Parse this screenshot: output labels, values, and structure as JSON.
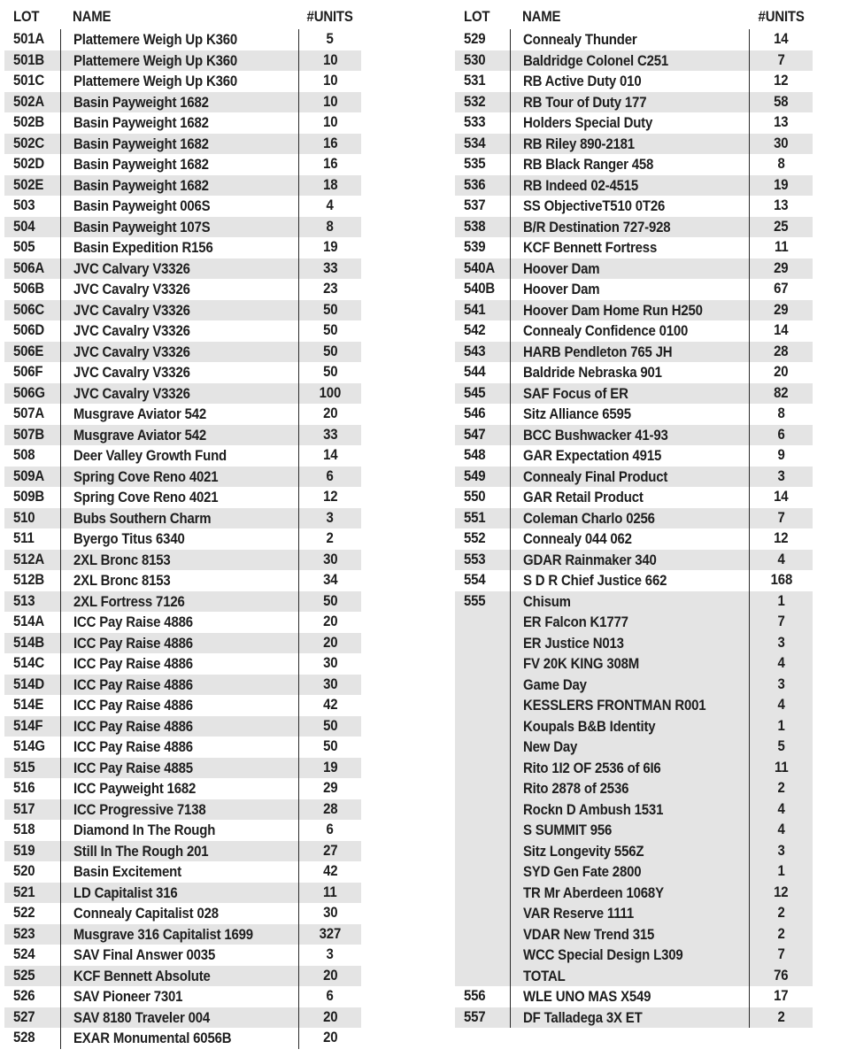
{
  "style": {
    "text_color": "#1d1d1d",
    "stripe_color": "#e4e4e4",
    "rule_color": "#2a2a2a",
    "background_color": "#ffffff"
  },
  "tables": [
    {
      "headers": {
        "lot": "LOT",
        "name": "NAME",
        "units": "#UNITS"
      },
      "rows": [
        {
          "lot": "501A",
          "name": "Plattemere Weigh Up K360",
          "units": "5"
        },
        {
          "lot": "501B",
          "name": "Plattemere Weigh Up K360",
          "units": "10"
        },
        {
          "lot": "501C",
          "name": "Plattemere Weigh Up K360",
          "units": "10"
        },
        {
          "lot": "502A",
          "name": "Basin Payweight 1682",
          "units": "10"
        },
        {
          "lot": "502B",
          "name": "Basin Payweight 1682",
          "units": "10"
        },
        {
          "lot": "502C",
          "name": "Basin Payweight 1682",
          "units": "16"
        },
        {
          "lot": "502D",
          "name": "Basin Payweight 1682",
          "units": "16"
        },
        {
          "lot": "502E",
          "name": "Basin Payweight 1682",
          "units": "18"
        },
        {
          "lot": "503",
          "name": "Basin Payweight 006S",
          "units": "4"
        },
        {
          "lot": "504",
          "name": "Basin Payweight 107S",
          "units": "8"
        },
        {
          "lot": "505",
          "name": "Basin Expedition R156",
          "units": "19"
        },
        {
          "lot": "506A",
          "name": "JVC Calvary V3326",
          "units": "33"
        },
        {
          "lot": "506B",
          "name": "JVC Cavalry V3326",
          "units": "23"
        },
        {
          "lot": "506C",
          "name": "JVC Cavalry V3326",
          "units": "50"
        },
        {
          "lot": "506D",
          "name": "JVC Cavalry V3326",
          "units": "50"
        },
        {
          "lot": "506E",
          "name": "JVC Cavalry V3326",
          "units": "50"
        },
        {
          "lot": "506F",
          "name": "JVC Cavalry V3326",
          "units": "50"
        },
        {
          "lot": "506G",
          "name": "JVC Cavalry V3326",
          "units": "100"
        },
        {
          "lot": "507A",
          "name": "Musgrave Aviator 542",
          "units": "20"
        },
        {
          "lot": "507B",
          "name": "Musgrave Aviator 542",
          "units": "33"
        },
        {
          "lot": "508",
          "name": "Deer Valley Growth Fund",
          "units": "14"
        },
        {
          "lot": "509A",
          "name": "Spring Cove Reno 4021",
          "units": "6"
        },
        {
          "lot": "509B",
          "name": "Spring Cove Reno 4021",
          "units": "12"
        },
        {
          "lot": "510",
          "name": "Bubs Southern Charm",
          "units": "3"
        },
        {
          "lot": "511",
          "name": "Byergo Titus 6340",
          "units": "2"
        },
        {
          "lot": "512A",
          "name": "2XL Bronc 8153",
          "units": "30"
        },
        {
          "lot": "512B",
          "name": "2XL Bronc 8153",
          "units": "34"
        },
        {
          "lot": "513",
          "name": "2XL Fortress 7126",
          "units": "50"
        },
        {
          "lot": "514A",
          "name": "ICC Pay Raise 4886",
          "units": "20"
        },
        {
          "lot": "514B",
          "name": "ICC Pay Raise 4886",
          "units": "20"
        },
        {
          "lot": "514C",
          "name": "ICC Pay Raise 4886",
          "units": "30"
        },
        {
          "lot": "514D",
          "name": "ICC Pay Raise 4886",
          "units": "30"
        },
        {
          "lot": "514E",
          "name": "ICC Pay Raise 4886",
          "units": "42"
        },
        {
          "lot": "514F",
          "name": "ICC Pay Raise 4886",
          "units": "50"
        },
        {
          "lot": "514G",
          "name": "ICC Pay Raise 4886",
          "units": "50"
        },
        {
          "lot": "515",
          "name": "ICC Pay Raise 4885",
          "units": "19"
        },
        {
          "lot": "516",
          "name": "ICC Payweight 1682",
          "units": "29"
        },
        {
          "lot": "517",
          "name": "ICC Progressive 7138",
          "units": "28"
        },
        {
          "lot": "518",
          "name": "Diamond In The Rough",
          "units": "6"
        },
        {
          "lot": "519",
          "name": "Still In The Rough 201",
          "units": "27"
        },
        {
          "lot": "520",
          "name": "Basin Excitement",
          "units": "42"
        },
        {
          "lot": "521",
          "name": "LD Capitalist 316",
          "units": "11"
        },
        {
          "lot": "522",
          "name": "Connealy Capitalist 028",
          "units": "30"
        },
        {
          "lot": "523",
          "name": "Musgrave 316 Capitalist 1699",
          "units": "327"
        },
        {
          "lot": "524",
          "name": "SAV Final Answer 0035",
          "units": "3"
        },
        {
          "lot": "525",
          "name": "KCF Bennett Absolute",
          "units": "20"
        },
        {
          "lot": "526",
          "name": "SAV Pioneer 7301",
          "units": "6"
        },
        {
          "lot": "527",
          "name": "SAV 8180 Traveler 004",
          "units": "20"
        },
        {
          "lot": "528",
          "name": "EXAR Monumental 6056B",
          "units": "20"
        }
      ]
    },
    {
      "headers": {
        "lot": "LOT",
        "name": "NAME",
        "units": "#UNITS"
      },
      "rows": [
        {
          "lot": "529",
          "name": "Connealy Thunder",
          "units": "14"
        },
        {
          "lot": "530",
          "name": "Baldridge Colonel C251",
          "units": "7"
        },
        {
          "lot": "531",
          "name": "RB Active Duty 010",
          "units": "12"
        },
        {
          "lot": "532",
          "name": "RB Tour of Duty 177",
          "units": "58"
        },
        {
          "lot": "533",
          "name": "Holders Special Duty",
          "units": "13"
        },
        {
          "lot": "534",
          "name": "RB Riley 890-2181",
          "units": "30"
        },
        {
          "lot": "535",
          "name": "RB Black Ranger 458",
          "units": "8"
        },
        {
          "lot": "536",
          "name": "RB Indeed 02-4515",
          "units": "19"
        },
        {
          "lot": "537",
          "name": "SS ObjectiveT510 0T26",
          "units": "13"
        },
        {
          "lot": "538",
          "name": "B/R Destination 727-928",
          "units": "25"
        },
        {
          "lot": "539",
          "name": "KCF Bennett Fortress",
          "units": "11"
        },
        {
          "lot": "540A",
          "name": "Hoover Dam",
          "units": "29"
        },
        {
          "lot": "540B",
          "name": "Hoover Dam",
          "units": "67"
        },
        {
          "lot": "541",
          "name": "Hoover Dam Home Run H250",
          "units": "29"
        },
        {
          "lot": "542",
          "name": "Connealy Confidence 0100",
          "units": "14"
        },
        {
          "lot": "543",
          "name": "HARB Pendleton 765 JH",
          "units": "28"
        },
        {
          "lot": "544",
          "name": "Baldride Nebraska 901",
          "units": "20"
        },
        {
          "lot": "545",
          "name": "SAF Focus of ER",
          "units": "82"
        },
        {
          "lot": "546",
          "name": "Sitz Alliance 6595",
          "units": "8"
        },
        {
          "lot": "547",
          "name": "BCC Bushwacker 41-93",
          "units": "6"
        },
        {
          "lot": "548",
          "name": "GAR Expectation 4915",
          "units": "9"
        },
        {
          "lot": "549",
          "name": "Connealy Final Product",
          "units": "3"
        },
        {
          "lot": "550",
          "name": "GAR Retail Product",
          "units": "14"
        },
        {
          "lot": "551",
          "name": "Coleman Charlo 0256",
          "units": "7"
        },
        {
          "lot": "552",
          "name": "Connealy 044 062",
          "units": "12"
        },
        {
          "lot": "553",
          "name": "GDAR Rainmaker 340",
          "units": "4"
        },
        {
          "lot": "554",
          "name": "S D R Chief Justice 662",
          "units": "168"
        },
        {
          "lot": "555",
          "lines": [
            {
              "name": "Chisum",
              "units": "1"
            },
            {
              "name": "ER Falcon K1777",
              "units": "7"
            },
            {
              "name": "ER Justice N013",
              "units": "3"
            },
            {
              "name": "FV 20K KING 308M",
              "units": "4"
            },
            {
              "name": "Game Day",
              "units": "3"
            },
            {
              "name": "KESSLERS FRONTMAN R001",
              "units": "4"
            },
            {
              "name": "Koupals B&B Identity",
              "units": "1"
            },
            {
              "name": "New Day",
              "units": "5"
            },
            {
              "name": "Rito 1I2 OF 2536 of 6I6",
              "units": "11"
            },
            {
              "name": "Rito 2878 of 2536",
              "units": "2"
            },
            {
              "name": "Rockn D Ambush 1531",
              "units": "4"
            },
            {
              "name": "S SUMMIT 956",
              "units": "4"
            },
            {
              "name": "Sitz Longevity 556Z",
              "units": "3"
            },
            {
              "name": "SYD Gen Fate 2800",
              "units": "1"
            },
            {
              "name": "TR Mr Aberdeen 1068Y",
              "units": "12"
            },
            {
              "name": "VAR Reserve 1111",
              "units": "2"
            },
            {
              "name": "VDAR New Trend 315",
              "units": "2"
            },
            {
              "name": "WCC Special Design L309",
              "units": "7"
            },
            {
              "name": "TOTAL",
              "units": "76"
            }
          ]
        },
        {
          "lot": "556",
          "name": "WLE UNO MAS X549",
          "units": "17"
        },
        {
          "lot": "557",
          "name": "DF Talladega 3X ET",
          "units": "2"
        }
      ]
    }
  ]
}
